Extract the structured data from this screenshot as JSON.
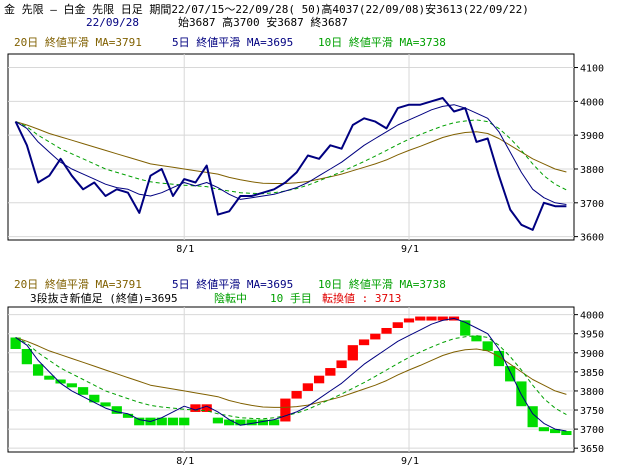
{
  "header": {
    "line1": "金 先限 – 白金 先限 日足 期間22/07/15〜22/09/28( 50)高4037(22/09/08)安3613(22/09/22)",
    "date": "22/09/28",
    "ohlc": "始3687 高3700 安3687 終3687"
  },
  "legend": {
    "ma20": "20日 終値平滑 MA=3791",
    "ma5": "5日 終値平滑 MA=3695",
    "ma10": "10日 終値平滑 MA=3738"
  },
  "sub_header": {
    "kagi_label": "3段抜き新値足 (終値)=3695",
    "state": "陰転中",
    "count": "10 手目",
    "reversal": "転換値 : 3713"
  },
  "colors": {
    "ma20": "#806000",
    "ma5": "#000080",
    "ma10": "#00a000",
    "close": "#000080",
    "up_brick": "#ff0000",
    "down_brick": "#00dd00",
    "grid": "#d8d8d8"
  },
  "chart_data": [
    {
      "type": "line",
      "x_labels": [
        "8/1",
        "9/1"
      ],
      "y_ticks": [
        3600,
        3700,
        3800,
        3900,
        4000,
        4100
      ],
      "ylim": [
        3590,
        4140
      ],
      "series": [
        {
          "name": "終値",
          "values": [
            3940,
            3870,
            3760,
            3780,
            3830,
            3780,
            3740,
            3760,
            3720,
            3740,
            3730,
            3670,
            3780,
            3800,
            3720,
            3770,
            3760,
            3810,
            3665,
            3675,
            3720,
            3720,
            3730,
            3740,
            3760,
            3790,
            3840,
            3830,
            3870,
            3860,
            3930,
            3950,
            3940,
            3920,
            3980,
            3990,
            3990,
            4000,
            4010,
            3970,
            3980,
            3880,
            3890,
            3780,
            3680,
            3635,
            3620,
            3700,
            3690,
            3690
          ]
        },
        {
          "name": "20日 終値平滑",
          "values": [
            3940,
            3930,
            3918,
            3905,
            3895,
            3885,
            3875,
            3865,
            3855,
            3845,
            3835,
            3825,
            3815,
            3810,
            3805,
            3800,
            3795,
            3790,
            3785,
            3775,
            3768,
            3762,
            3758,
            3757,
            3757,
            3759,
            3763,
            3770,
            3777,
            3785,
            3795,
            3805,
            3815,
            3827,
            3842,
            3855,
            3867,
            3880,
            3893,
            3902,
            3908,
            3910,
            3905,
            3890,
            3870,
            3850,
            3830,
            3815,
            3800,
            3791
          ]
        },
        {
          "name": "5日 終値平滑",
          "values": [
            3940,
            3920,
            3880,
            3850,
            3820,
            3800,
            3785,
            3770,
            3755,
            3745,
            3740,
            3725,
            3720,
            3730,
            3745,
            3760,
            3750,
            3760,
            3745,
            3725,
            3710,
            3715,
            3720,
            3725,
            3735,
            3745,
            3760,
            3780,
            3800,
            3820,
            3845,
            3870,
            3890,
            3910,
            3930,
            3945,
            3960,
            3975,
            3985,
            3990,
            3980,
            3965,
            3950,
            3910,
            3850,
            3790,
            3740,
            3715,
            3700,
            3695
          ]
        },
        {
          "name": "10日 終値平滑",
          "values": [
            3940,
            3925,
            3900,
            3880,
            3860,
            3845,
            3830,
            3815,
            3800,
            3790,
            3780,
            3770,
            3762,
            3758,
            3755,
            3752,
            3750,
            3748,
            3740,
            3735,
            3730,
            3728,
            3727,
            3730,
            3735,
            3742,
            3752,
            3765,
            3778,
            3792,
            3807,
            3822,
            3838,
            3855,
            3872,
            3888,
            3902,
            3915,
            3927,
            3937,
            3942,
            3945,
            3940,
            3920,
            3890,
            3855,
            3815,
            3780,
            3755,
            3738
          ]
        }
      ]
    },
    {
      "type": "bar",
      "title": "3段抜き新値足",
      "x_labels": [
        "8/1",
        "9/1"
      ],
      "y_ticks": [
        3650,
        3700,
        3750,
        3800,
        3850,
        3900,
        3950,
        4000
      ],
      "ylim": [
        3640,
        4020
      ],
      "bricks": [
        {
          "dir": "down",
          "open": 3940,
          "close": 3910
        },
        {
          "dir": "down",
          "open": 3910,
          "close": 3870
        },
        {
          "dir": "down",
          "open": 3870,
          "close": 3840
        },
        {
          "dir": "down",
          "open": 3840,
          "close": 3830
        },
        {
          "dir": "down",
          "open": 3830,
          "close": 3820
        },
        {
          "dir": "down",
          "open": 3820,
          "close": 3810
        },
        {
          "dir": "down",
          "open": 3810,
          "close": 3790
        },
        {
          "dir": "down",
          "open": 3790,
          "close": 3770
        },
        {
          "dir": "down",
          "open": 3770,
          "close": 3760
        },
        {
          "dir": "down",
          "open": 3760,
          "close": 3740
        },
        {
          "dir": "down",
          "open": 3740,
          "close": 3730
        },
        {
          "dir": "down",
          "open": 3730,
          "close": 3710
        },
        {
          "dir": "down",
          "open": 3730,
          "close": 3710
        },
        {
          "dir": "down",
          "open": 3730,
          "close": 3710
        },
        {
          "dir": "down",
          "open": 3730,
          "close": 3710
        },
        {
          "dir": "down",
          "open": 3730,
          "close": 3710
        },
        {
          "dir": "up",
          "open": 3745,
          "close": 3765
        },
        {
          "dir": "up",
          "open": 3745,
          "close": 3765
        },
        {
          "dir": "down",
          "open": 3730,
          "close": 3715
        },
        {
          "dir": "down",
          "open": 3725,
          "close": 3710
        },
        {
          "dir": "down",
          "open": 3725,
          "close": 3710
        },
        {
          "dir": "down",
          "open": 3725,
          "close": 3710
        },
        {
          "dir": "down",
          "open": 3725,
          "close": 3710
        },
        {
          "dir": "down",
          "open": 3725,
          "close": 3710
        },
        {
          "dir": "up",
          "open": 3720,
          "close": 3780
        },
        {
          "dir": "up",
          "open": 3780,
          "close": 3800
        },
        {
          "dir": "up",
          "open": 3800,
          "close": 3820
        },
        {
          "dir": "up",
          "open": 3820,
          "close": 3840
        },
        {
          "dir": "up",
          "open": 3840,
          "close": 3860
        },
        {
          "dir": "up",
          "open": 3860,
          "close": 3880
        },
        {
          "dir": "up",
          "open": 3880,
          "close": 3920
        },
        {
          "dir": "up",
          "open": 3920,
          "close": 3935
        },
        {
          "dir": "up",
          "open": 3935,
          "close": 3950
        },
        {
          "dir": "up",
          "open": 3950,
          "close": 3965
        },
        {
          "dir": "up",
          "open": 3965,
          "close": 3980
        },
        {
          "dir": "up",
          "open": 3980,
          "close": 3990
        },
        {
          "dir": "up",
          "open": 3985,
          "close": 3995
        },
        {
          "dir": "up",
          "open": 3985,
          "close": 3995
        },
        {
          "dir": "up",
          "open": 3985,
          "close": 3995
        },
        {
          "dir": "up",
          "open": 3985,
          "close": 3995
        },
        {
          "dir": "down",
          "open": 3985,
          "close": 3945
        },
        {
          "dir": "down",
          "open": 3945,
          "close": 3930
        },
        {
          "dir": "down",
          "open": 3930,
          "close": 3905
        },
        {
          "dir": "down",
          "open": 3905,
          "close": 3865
        },
        {
          "dir": "down",
          "open": 3865,
          "close": 3825
        },
        {
          "dir": "down",
          "open": 3825,
          "close": 3760
        },
        {
          "dir": "down",
          "open": 3760,
          "close": 3705
        },
        {
          "dir": "down",
          "open": 3705,
          "close": 3695
        },
        {
          "dir": "down",
          "open": 3700,
          "close": 3690
        },
        {
          "dir": "down",
          "open": 3695,
          "close": 3685
        }
      ],
      "series": [
        {
          "name": "20日 終値平滑",
          "values": [
            3940,
            3930,
            3918,
            3905,
            3895,
            3885,
            3875,
            3865,
            3855,
            3845,
            3835,
            3825,
            3815,
            3810,
            3805,
            3800,
            3795,
            3790,
            3785,
            3775,
            3768,
            3762,
            3758,
            3757,
            3757,
            3759,
            3763,
            3770,
            3777,
            3785,
            3795,
            3805,
            3815,
            3827,
            3842,
            3855,
            3867,
            3880,
            3893,
            3902,
            3908,
            3910,
            3905,
            3890,
            3870,
            3850,
            3830,
            3815,
            3800,
            3791
          ]
        },
        {
          "name": "5日 終値平滑",
          "values": [
            3940,
            3920,
            3880,
            3850,
            3820,
            3800,
            3785,
            3770,
            3755,
            3745,
            3740,
            3725,
            3720,
            3730,
            3745,
            3760,
            3750,
            3760,
            3745,
            3725,
            3710,
            3715,
            3720,
            3725,
            3735,
            3745,
            3760,
            3780,
            3800,
            3820,
            3845,
            3870,
            3890,
            3910,
            3930,
            3945,
            3960,
            3975,
            3985,
            3990,
            3980,
            3965,
            3950,
            3910,
            3850,
            3790,
            3740,
            3715,
            3700,
            3695
          ]
        },
        {
          "name": "10日 終値平滑",
          "values": [
            3940,
            3925,
            3900,
            3880,
            3860,
            3845,
            3830,
            3815,
            3800,
            3790,
            3780,
            3770,
            3762,
            3758,
            3755,
            3752,
            3750,
            3748,
            3740,
            3735,
            3730,
            3728,
            3727,
            3730,
            3735,
            3742,
            3752,
            3765,
            3778,
            3792,
            3807,
            3822,
            3838,
            3855,
            3872,
            3888,
            3902,
            3915,
            3927,
            3937,
            3942,
            3945,
            3940,
            3920,
            3890,
            3855,
            3815,
            3780,
            3755,
            3738
          ]
        }
      ]
    }
  ]
}
